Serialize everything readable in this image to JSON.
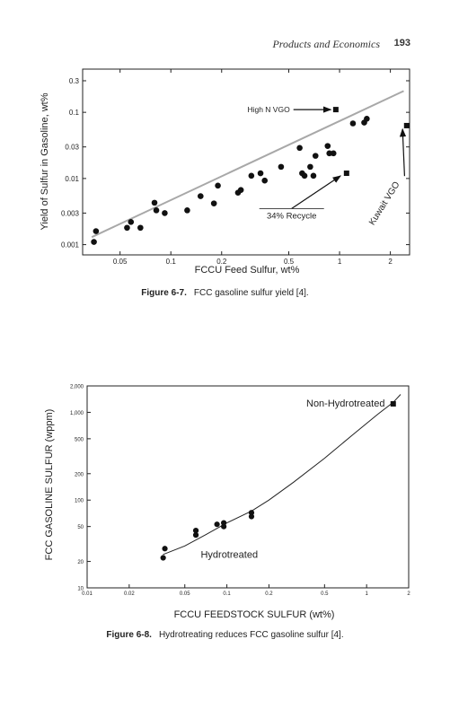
{
  "page": {
    "running_head": "Products and Economics",
    "page_number": "193"
  },
  "figures": [
    {
      "label": "Figure 6-7.",
      "caption": "FCC gasoline sulfur yield [4]."
    },
    {
      "label": "Figure 6-8.",
      "caption": "Hydrotreating reduces FCC gasoline sulfur [4]."
    }
  ],
  "chart_data": [
    {
      "type": "scatter",
      "title": "",
      "xlabel": "FCCU Feed Sulfur, wt%",
      "ylabel": "Yield of Sulfur in Gasoline, wt%",
      "x_scale": "log",
      "y_scale": "log",
      "xlim": [
        0.03,
        2.6
      ],
      "ylim": [
        0.0007,
        0.45
      ],
      "x_ticks": [
        0.05,
        0.1,
        0.2,
        0.5,
        1,
        2
      ],
      "x_tick_labels": [
        "0.05",
        "0.1",
        "0.2",
        "0.5",
        "1",
        "2"
      ],
      "y_ticks": [
        0.001,
        0.003,
        0.01,
        0.03,
        0.1,
        0.3
      ],
      "y_tick_labels": [
        "0.001",
        "0.003",
        "0.01",
        "0.03",
        "0.1",
        "0.3"
      ],
      "grid": false,
      "series": [
        {
          "marker": "circle",
          "points": [
            [
              0.035,
              0.0011
            ],
            [
              0.036,
              0.0016
            ],
            [
              0.055,
              0.0018
            ],
            [
              0.058,
              0.0022
            ],
            [
              0.066,
              0.0018
            ],
            [
              0.08,
              0.0043
            ],
            [
              0.082,
              0.0033
            ],
            [
              0.092,
              0.003
            ],
            [
              0.125,
              0.0033
            ],
            [
              0.15,
              0.0054
            ],
            [
              0.18,
              0.0042
            ],
            [
              0.19,
              0.0078
            ],
            [
              0.25,
              0.0061
            ],
            [
              0.26,
              0.0067
            ],
            [
              0.3,
              0.011
            ],
            [
              0.34,
              0.012
            ],
            [
              0.36,
              0.0093
            ],
            [
              0.45,
              0.015
            ],
            [
              0.58,
              0.029
            ],
            [
              0.6,
              0.012
            ],
            [
              0.62,
              0.011
            ],
            [
              0.67,
              0.015
            ],
            [
              0.7,
              0.011
            ],
            [
              0.72,
              0.022
            ],
            [
              0.85,
              0.031
            ],
            [
              0.87,
              0.024
            ],
            [
              0.92,
              0.024
            ],
            [
              1.2,
              0.068
            ],
            [
              1.4,
              0.07
            ],
            [
              1.45,
              0.08
            ]
          ]
        },
        {
          "marker": "square",
          "points": [
            [
              0.95,
              0.11
            ],
            [
              1.1,
              0.012
            ],
            [
              2.5,
              0.063
            ]
          ]
        }
      ],
      "trend_line": [
        [
          0.034,
          0.0013
        ],
        [
          2.4,
          0.21
        ]
      ],
      "annotations": [
        {
          "text": "High N VGO",
          "x": 0.52,
          "y": 0.11,
          "arrow_to": [
            0.92,
            0.11
          ]
        },
        {
          "text": "34% Recycle",
          "x": 0.52,
          "y": 0.0032,
          "arrow_to": [
            1.05,
            0.012
          ]
        },
        {
          "text": "Kuwait VGO",
          "x": 1.9,
          "y": 0.004,
          "rotation": -58,
          "arrow_to": [
            2.45,
            0.065
          ]
        }
      ]
    },
    {
      "type": "scatter",
      "title": "",
      "xlabel": "FCCU FEEDSTOCK SULFUR (wt%)",
      "ylabel": "FCC GASOLINE SULFUR (wppm)",
      "x_scale": "log",
      "y_scale": "log",
      "xlim": [
        0.01,
        2
      ],
      "ylim": [
        10,
        2000
      ],
      "x_ticks": [
        0.01,
        0.02,
        0.05,
        0.1,
        0.2,
        0.5,
        1,
        2
      ],
      "x_tick_labels": [
        "0.01",
        "0.02",
        "0.05",
        "0.1",
        "0.2",
        "0.5",
        "1",
        "2"
      ],
      "y_ticks": [
        10,
        20,
        50,
        100,
        200,
        500,
        1000,
        2000
      ],
      "y_tick_labels": [
        "10",
        "20",
        "50",
        "100",
        "200",
        "500",
        "1,000",
        "2,000"
      ],
      "grid": false,
      "series": [
        {
          "name": "Hydrotreated",
          "marker": "circle",
          "points": [
            [
              0.035,
              22
            ],
            [
              0.036,
              28
            ],
            [
              0.06,
              40
            ],
            [
              0.06,
              45
            ],
            [
              0.085,
              53
            ],
            [
              0.095,
              55
            ],
            [
              0.095,
              50
            ],
            [
              0.15,
              65
            ],
            [
              0.15,
              72
            ]
          ]
        },
        {
          "name": "Non-Hydrotreated",
          "marker": "square",
          "points": [
            [
              1.55,
              1250
            ]
          ]
        }
      ],
      "fit_curve": [
        [
          0.035,
          24
        ],
        [
          0.05,
          30
        ],
        [
          0.07,
          40
        ],
        [
          0.1,
          55
        ],
        [
          0.15,
          75
        ],
        [
          0.2,
          100
        ],
        [
          0.3,
          160
        ],
        [
          0.5,
          300
        ],
        [
          0.8,
          560
        ],
        [
          1.2,
          950
        ],
        [
          1.55,
          1300
        ],
        [
          1.75,
          1600
        ]
      ]
    }
  ]
}
